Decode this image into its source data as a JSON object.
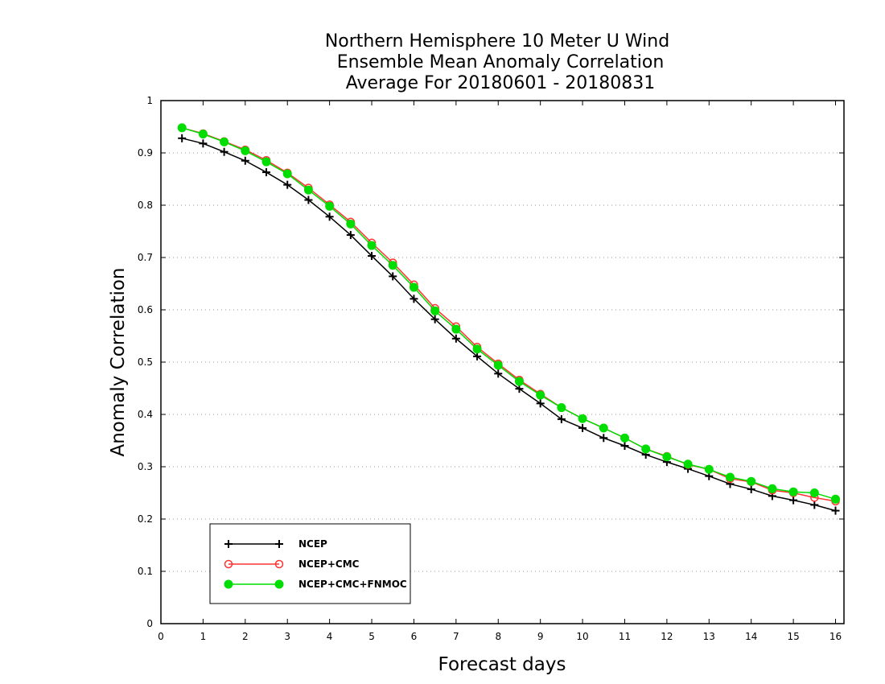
{
  "chart_data": {
    "type": "line",
    "title_lines": [
      "Northern Hemisphere 10 Meter U Wind",
      "Ensemble Mean Anomaly Correlation",
      "Average For 20180601 - 20180831"
    ],
    "xlabel": "Forecast days",
    "ylabel": "Anomaly Correlation",
    "xlim": [
      0,
      16.2
    ],
    "ylim": [
      0,
      1
    ],
    "xticks": [
      "0",
      "1",
      "2",
      "3",
      "4",
      "5",
      "6",
      "7",
      "8",
      "9",
      "10",
      "11",
      "12",
      "13",
      "14",
      "15",
      "16"
    ],
    "yticks": [
      "0",
      "0.1",
      "0.2",
      "0.3",
      "0.4",
      "0.5",
      "0.6",
      "0.7",
      "0.8",
      "0.9",
      "1"
    ],
    "grid": "horizontal-dotted",
    "legend_position": "bottom-left",
    "x": [
      0.5,
      1,
      1.5,
      2,
      2.5,
      3,
      3.5,
      4,
      4.5,
      5,
      5.5,
      6,
      6.5,
      7,
      7.5,
      8,
      8.5,
      9,
      9.5,
      10,
      10.5,
      11,
      11.5,
      12,
      12.5,
      13,
      13.5,
      14,
      14.5,
      15,
      15.5,
      16
    ],
    "series": [
      {
        "name": "NCEP",
        "color": "#000000",
        "marker": "plus",
        "values": [
          0.928,
          0.918,
          0.902,
          0.885,
          0.863,
          0.839,
          0.81,
          0.778,
          0.743,
          0.703,
          0.664,
          0.621,
          0.582,
          0.545,
          0.511,
          0.478,
          0.449,
          0.421,
          0.391,
          0.374,
          0.355,
          0.34,
          0.323,
          0.309,
          0.296,
          0.282,
          0.267,
          0.257,
          0.244,
          0.236,
          0.227,
          0.216
        ]
      },
      {
        "name": "NCEP+CMC",
        "color": "#ff3333",
        "marker": "open-circle",
        "values": [
          0.948,
          0.937,
          0.922,
          0.906,
          0.886,
          0.862,
          0.833,
          0.801,
          0.768,
          0.728,
          0.69,
          0.648,
          0.603,
          0.568,
          0.529,
          0.497,
          0.466,
          0.439,
          0.413,
          0.392,
          0.374,
          0.355,
          0.334,
          0.32,
          0.304,
          0.295,
          0.277,
          0.271,
          0.255,
          0.25,
          0.241,
          0.234
        ]
      },
      {
        "name": "NCEP+CMC+FNMOC",
        "color": "#00dd00",
        "marker": "filled-circle",
        "values": [
          0.948,
          0.936,
          0.921,
          0.904,
          0.883,
          0.86,
          0.829,
          0.798,
          0.764,
          0.723,
          0.685,
          0.643,
          0.598,
          0.563,
          0.525,
          0.494,
          0.463,
          0.437,
          0.413,
          0.392,
          0.374,
          0.355,
          0.334,
          0.319,
          0.305,
          0.295,
          0.28,
          0.272,
          0.258,
          0.252,
          0.25,
          0.238
        ]
      }
    ]
  }
}
